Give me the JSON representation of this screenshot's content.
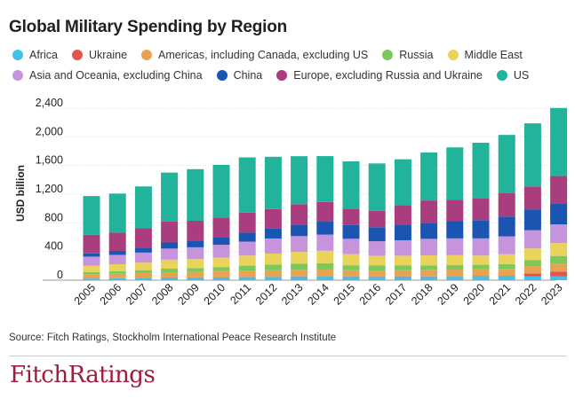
{
  "title": "Global Military Spending by Region",
  "source": "Source: Fitch Ratings, Stockholm International Peace Research Institute",
  "logo": {
    "word1": "Fitch",
    "word2": "Ratings"
  },
  "chart_data": {
    "type": "bar",
    "stacked": true,
    "title": "Global Military Spending by Region",
    "xlabel": "",
    "ylabel": "USD billion",
    "ylim": [
      0,
      2400
    ],
    "yticks": [
      "0",
      "400",
      "800",
      "1,200",
      "1,600",
      "2,000",
      "2,400"
    ],
    "ytick_values": [
      0,
      400,
      800,
      1200,
      1600,
      2000,
      2400
    ],
    "grid": true,
    "legend_position": "top",
    "categories": [
      "2005",
      "2006",
      "2007",
      "2008",
      "2009",
      "2010",
      "2011",
      "2012",
      "2013",
      "2014",
      "2015",
      "2016",
      "2017",
      "2018",
      "2019",
      "2020",
      "2021",
      "2022",
      "2023"
    ],
    "series": [
      {
        "name": "Africa",
        "color": "#3fc1ea",
        "values": [
          22,
          24,
          27,
          32,
          35,
          38,
          42,
          44,
          46,
          48,
          46,
          44,
          45,
          46,
          47,
          48,
          50,
          52,
          55
        ]
      },
      {
        "name": "Ukraine",
        "color": "#e5534b",
        "values": [
          2,
          2,
          3,
          4,
          3,
          3,
          3,
          3,
          4,
          5,
          4,
          4,
          5,
          6,
          6,
          7,
          8,
          40,
          65
        ]
      },
      {
        "name": "Americas, including Canada, excluding US",
        "color": "#e8a352",
        "values": [
          60,
          65,
          70,
          75,
          78,
          85,
          90,
          92,
          94,
          95,
          90,
          88,
          90,
          92,
          95,
          98,
          100,
          105,
          110
        ]
      },
      {
        "name": "Russia",
        "color": "#7cc95b",
        "values": [
          30,
          34,
          40,
          50,
          53,
          58,
          68,
          78,
          86,
          88,
          68,
          68,
          64,
          61,
          62,
          62,
          66,
          86,
          108
        ]
      },
      {
        "name": "Middle East",
        "color": "#e9d35a",
        "values": [
          90,
          98,
          105,
          125,
          125,
          130,
          140,
          155,
          165,
          175,
          155,
          135,
          138,
          142,
          138,
          128,
          138,
          160,
          180
        ]
      },
      {
        "name": "Asia and Oceania, excluding China",
        "color": "#c594dc",
        "values": [
          125,
          130,
          140,
          155,
          165,
          180,
          195,
          210,
          220,
          225,
          215,
          205,
          215,
          230,
          235,
          240,
          250,
          255,
          260
        ]
      },
      {
        "name": "China",
        "color": "#1a55b2",
        "values": [
          45,
          55,
          68,
          85,
          95,
          105,
          125,
          140,
          160,
          180,
          190,
          195,
          210,
          225,
          240,
          255,
          275,
          290,
          295
        ]
      },
      {
        "name": "Europe, excluding Russia and Ukraine",
        "color": "#a93d7e",
        "values": [
          260,
          255,
          275,
          295,
          275,
          275,
          280,
          270,
          285,
          275,
          230,
          230,
          280,
          310,
          300,
          300,
          330,
          320,
          380
        ]
      },
      {
        "name": "US",
        "color": "#22b39b",
        "values": [
          540,
          545,
          580,
          680,
          720,
          735,
          770,
          730,
          670,
          640,
          660,
          660,
          640,
          670,
          730,
          780,
          810,
          880,
          950
        ]
      }
    ]
  }
}
